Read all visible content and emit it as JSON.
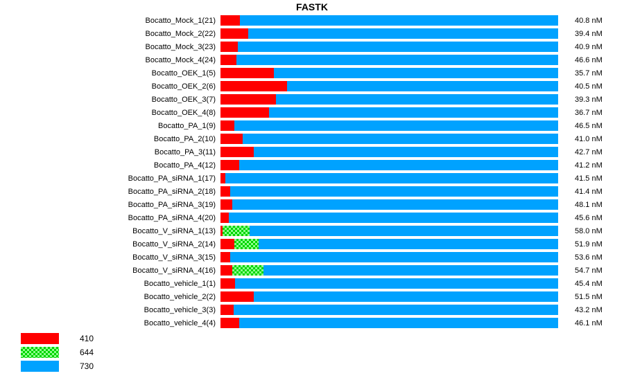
{
  "chart_data": {
    "type": "bar",
    "orientation": "horizontal",
    "stacked": true,
    "title": "FASTK",
    "xlim_pct": [
      0,
      100
    ],
    "grid": false,
    "legend_position": "bottom-left",
    "colors": {
      "red": "#ff0000",
      "green": "#00d400",
      "green_light": "#8cff8c",
      "blue": "#00a2ff"
    },
    "legend": [
      {
        "label": "410",
        "swatch": "red"
      },
      {
        "label": "644",
        "swatch": "green-checker"
      },
      {
        "label": "730",
        "swatch": "blue"
      }
    ],
    "rows": [
      {
        "label": "Bocatto_Mock_1(21)",
        "value": "40.8 nM",
        "pct_410": 5.7,
        "pct_644": 0,
        "pct_730": 94.3
      },
      {
        "label": "Bocatto_Mock_2(22)",
        "value": "39.4 nM",
        "pct_410": 8.2,
        "pct_644": 0,
        "pct_730": 91.8
      },
      {
        "label": "Bocatto_Mock_3(23)",
        "value": "40.9 nM",
        "pct_410": 5.1,
        "pct_644": 0,
        "pct_730": 94.9
      },
      {
        "label": "Bocatto_Mock_4(24)",
        "value": "46.6 nM",
        "pct_410": 4.7,
        "pct_644": 0,
        "pct_730": 95.3
      },
      {
        "label": "Bocatto_OEK_1(5)",
        "value": "35.7 nM",
        "pct_410": 15.8,
        "pct_644": 0,
        "pct_730": 84.2
      },
      {
        "label": "Bocatto_OEK_2(6)",
        "value": "40.5 nM",
        "pct_410": 19.7,
        "pct_644": 0,
        "pct_730": 80.3
      },
      {
        "label": "Bocatto_OEK_3(7)",
        "value": "39.3 nM",
        "pct_410": 16.4,
        "pct_644": 0,
        "pct_730": 83.6
      },
      {
        "label": "Bocatto_OEK_4(8)",
        "value": "36.7 nM",
        "pct_410": 14.4,
        "pct_644": 0,
        "pct_730": 85.6
      },
      {
        "label": "Bocatto_PA_1(9)",
        "value": "46.5 nM",
        "pct_410": 4.1,
        "pct_644": 0,
        "pct_730": 95.9
      },
      {
        "label": "Bocatto_PA_2(10)",
        "value": "41.0 nM",
        "pct_410": 6.6,
        "pct_644": 0,
        "pct_730": 93.4
      },
      {
        "label": "Bocatto_PA_3(11)",
        "value": "42.7 nM",
        "pct_410": 9.9,
        "pct_644": 0,
        "pct_730": 90.1
      },
      {
        "label": "Bocatto_PA_4(12)",
        "value": "41.2 nM",
        "pct_410": 5.5,
        "pct_644": 0,
        "pct_730": 94.5
      },
      {
        "label": "Bocatto_PA_siRNA_1(17)",
        "value": "41.5 nM",
        "pct_410": 1.4,
        "pct_644": 0,
        "pct_730": 98.6
      },
      {
        "label": "Bocatto_PA_siRNA_2(18)",
        "value": "41.4 nM",
        "pct_410": 2.9,
        "pct_644": 0,
        "pct_730": 97.1
      },
      {
        "label": "Bocatto_PA_siRNA_3(19)",
        "value": "48.1 nM",
        "pct_410": 3.5,
        "pct_644": 0,
        "pct_730": 96.5
      },
      {
        "label": "Bocatto_PA_siRNA_4(20)",
        "value": "45.6 nM",
        "pct_410": 2.5,
        "pct_644": 0,
        "pct_730": 97.5
      },
      {
        "label": "Bocatto_V_siRNA_1(13)",
        "value": "58.0 nM",
        "pct_410": 0.6,
        "pct_644": 8.0,
        "pct_730": 91.4
      },
      {
        "label": "Bocatto_V_siRNA_2(14)",
        "value": "51.9 nM",
        "pct_410": 4.1,
        "pct_644": 7.2,
        "pct_730": 88.7
      },
      {
        "label": "Bocatto_V_siRNA_3(15)",
        "value": "53.6 nM",
        "pct_410": 2.9,
        "pct_644": 0,
        "pct_730": 97.1
      },
      {
        "label": "Bocatto_V_siRNA_4(16)",
        "value": "54.7 nM",
        "pct_410": 3.5,
        "pct_644": 9.2,
        "pct_730": 87.3
      },
      {
        "label": "Bocatto_vehicle_1(1)",
        "value": "45.4 nM",
        "pct_410": 4.3,
        "pct_644": 0,
        "pct_730": 95.7
      },
      {
        "label": "Bocatto_vehicle_2(2)",
        "value": "51.5 nM",
        "pct_410": 9.9,
        "pct_644": 0,
        "pct_730": 90.1
      },
      {
        "label": "Bocatto_vehicle_3(3)",
        "value": "43.2 nM",
        "pct_410": 3.9,
        "pct_644": 0,
        "pct_730": 96.1
      },
      {
        "label": "Bocatto_vehicle_4(4)",
        "value": "46.1 nM",
        "pct_410": 5.5,
        "pct_644": 0,
        "pct_730": 94.5
      }
    ]
  }
}
